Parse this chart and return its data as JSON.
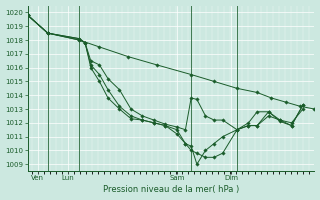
{
  "background_color": "#cce8e0",
  "grid_color": "#b8d8d0",
  "line_color": "#1a5c2a",
  "xlabel": "Pression niveau de la mer( hPa )",
  "ylim": [
    1008.5,
    1020.5
  ],
  "yticks": [
    1009,
    1010,
    1011,
    1012,
    1013,
    1014,
    1015,
    1016,
    1017,
    1018,
    1019,
    1020
  ],
  "xlim": [
    0,
    100
  ],
  "day_ticks": [
    3.5,
    14,
    52,
    71
  ],
  "day_labels": [
    "Ven",
    "Lun",
    "Sam",
    "Dim"
  ],
  "day_vlines": [
    7,
    18,
    57,
    73
  ],
  "series": {
    "straight": [
      [
        0,
        1019.8
      ],
      [
        7,
        1018.5
      ],
      [
        18,
        1018.0
      ],
      [
        25,
        1017.5
      ],
      [
        35,
        1016.8
      ],
      [
        45,
        1016.2
      ],
      [
        57,
        1015.5
      ],
      [
        65,
        1015.0
      ],
      [
        73,
        1014.5
      ],
      [
        80,
        1014.2
      ],
      [
        85,
        1013.8
      ],
      [
        90,
        1013.5
      ],
      [
        95,
        1013.2
      ],
      [
        100,
        1013.0
      ]
    ],
    "s2": [
      [
        0,
        1019.8
      ],
      [
        7,
        1018.5
      ],
      [
        18,
        1018.1
      ],
      [
        20,
        1017.8
      ],
      [
        22,
        1016.5
      ],
      [
        25,
        1016.2
      ],
      [
        28,
        1015.2
      ],
      [
        32,
        1014.4
      ],
      [
        36,
        1013.0
      ],
      [
        40,
        1012.5
      ],
      [
        44,
        1012.2
      ],
      [
        48,
        1011.9
      ],
      [
        52,
        1011.7
      ],
      [
        55,
        1011.5
      ],
      [
        57,
        1013.8
      ],
      [
        59,
        1013.7
      ],
      [
        62,
        1012.5
      ],
      [
        65,
        1012.2
      ],
      [
        68,
        1012.2
      ],
      [
        73,
        1011.5
      ],
      [
        77,
        1012.0
      ],
      [
        80,
        1012.8
      ],
      [
        84,
        1012.8
      ],
      [
        88,
        1012.2
      ],
      [
        92,
        1011.8
      ],
      [
        96,
        1013.3
      ]
    ],
    "s3": [
      [
        0,
        1019.8
      ],
      [
        7,
        1018.5
      ],
      [
        18,
        1018.1
      ],
      [
        20,
        1017.8
      ],
      [
        22,
        1016.2
      ],
      [
        25,
        1015.5
      ],
      [
        28,
        1014.4
      ],
      [
        32,
        1013.2
      ],
      [
        36,
        1012.5
      ],
      [
        40,
        1012.2
      ],
      [
        44,
        1012.0
      ],
      [
        48,
        1011.8
      ],
      [
        52,
        1011.5
      ],
      [
        55,
        1010.5
      ],
      [
        57,
        1010.0
      ],
      [
        59,
        1009.8
      ],
      [
        62,
        1009.5
      ],
      [
        65,
        1009.5
      ],
      [
        68,
        1009.8
      ],
      [
        73,
        1011.5
      ],
      [
        77,
        1011.8
      ],
      [
        80,
        1011.8
      ],
      [
        84,
        1012.8
      ],
      [
        88,
        1012.1
      ],
      [
        92,
        1011.8
      ],
      [
        96,
        1013.3
      ]
    ],
    "s4": [
      [
        0,
        1019.8
      ],
      [
        7,
        1018.5
      ],
      [
        18,
        1018.0
      ],
      [
        20,
        1017.8
      ],
      [
        22,
        1016.0
      ],
      [
        25,
        1015.0
      ],
      [
        28,
        1013.8
      ],
      [
        32,
        1013.0
      ],
      [
        36,
        1012.3
      ],
      [
        40,
        1012.2
      ],
      [
        44,
        1012.0
      ],
      [
        48,
        1011.8
      ],
      [
        52,
        1011.2
      ],
      [
        55,
        1010.5
      ],
      [
        57,
        1010.3
      ],
      [
        59,
        1009.0
      ],
      [
        62,
        1010.0
      ],
      [
        65,
        1010.5
      ],
      [
        68,
        1011.0
      ],
      [
        73,
        1011.5
      ],
      [
        77,
        1011.8
      ],
      [
        80,
        1011.8
      ],
      [
        84,
        1012.5
      ],
      [
        88,
        1012.2
      ],
      [
        92,
        1012.0
      ],
      [
        96,
        1013.0
      ]
    ]
  }
}
